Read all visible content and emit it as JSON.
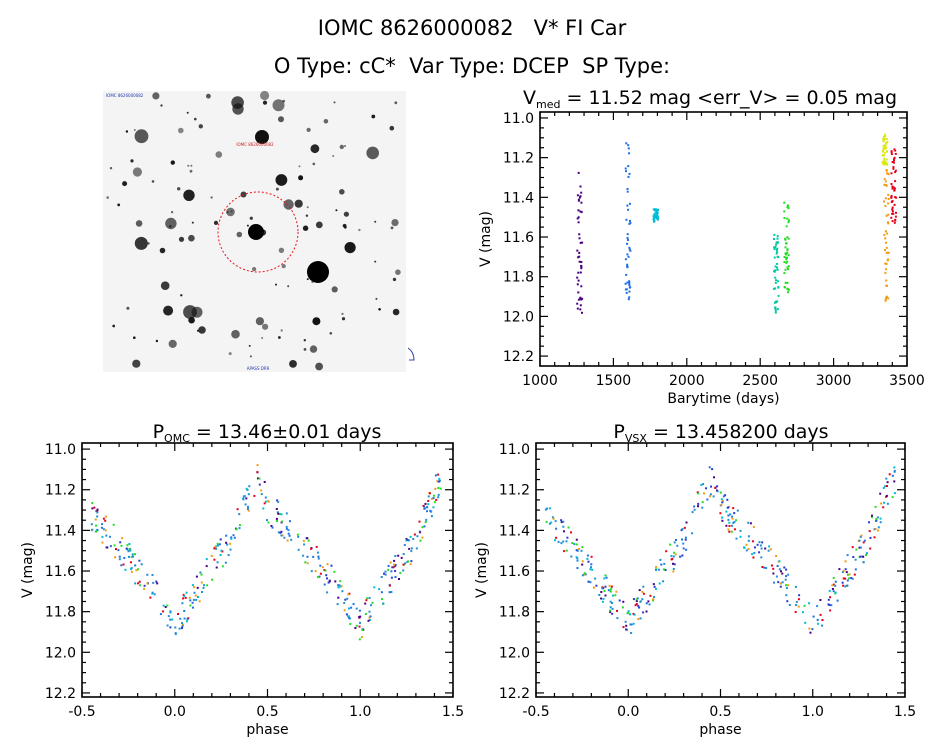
{
  "header": {
    "line1": "IOMC 8626000082   V* FI Car",
    "line2": "O Type: cC*  Var Type: DCEP  SP Type:"
  },
  "image_panel": {
    "corner_label_top_left": "IOMC 8626000082",
    "label_top_center": "IOMC 8626000082",
    "label_bottom_center": "APASS DR9",
    "circle_color": "#e8141c"
  },
  "chart_data": [
    {
      "id": "lightcurve",
      "type": "scatter",
      "title": "V_med = 11.52 mag <err_V> = 0.05 mag",
      "title_parts": {
        "sym": "V",
        "sub": "med",
        "rest": " = 11.52 mag <err_V> = 0.05 mag"
      },
      "xlabel": "Barytime (days)",
      "ylabel": "V (mag)",
      "xlim": [
        1000,
        3500
      ],
      "ylim": [
        12.25,
        10.97
      ],
      "xticks": [
        1000,
        1500,
        2000,
        2500,
        3000,
        3500
      ],
      "yticks": [
        11.0,
        11.2,
        11.4,
        11.6,
        11.8,
        12.0,
        12.2
      ],
      "ytick_labels": [
        "11.0",
        "11.2",
        "11.4",
        "11.6",
        "11.8",
        "12.0",
        "12.2"
      ],
      "series": [
        {
          "color": "#4b0082",
          "x": 1270,
          "ymin": 11.27,
          "ymax": 11.99
        },
        {
          "color": "#1e6fe6",
          "x": 1600,
          "ymin": 11.06,
          "ymax": 11.93
        },
        {
          "color": "#00bcd4",
          "x": 1790,
          "ymin": 11.46,
          "ymax": 11.53
        },
        {
          "color": "#00c8a0",
          "x": 2610,
          "ymin": 11.58,
          "ymax": 11.99
        },
        {
          "color": "#22dd22",
          "x": 2680,
          "ymin": 11.42,
          "ymax": 11.88
        },
        {
          "color": "#f39c12",
          "x": 3360,
          "ymin": 11.26,
          "ymax": 11.97
        },
        {
          "color": "#d9ea12",
          "x": 3350,
          "ymin": 11.08,
          "ymax": 11.24
        },
        {
          "color": "#e6001a",
          "x": 3410,
          "ymin": 11.15,
          "ymax": 11.55
        }
      ]
    },
    {
      "id": "phase_omc",
      "type": "scatter",
      "title": "P_OMC = 13.46±0.01 days",
      "title_parts": {
        "sym": "P",
        "sub": "OMC",
        "rest": " = 13.46±0.01 days"
      },
      "xlabel": "phase",
      "ylabel": "V (mag)",
      "xlim": [
        -0.5,
        1.5
      ],
      "ylim": [
        12.22,
        10.97
      ],
      "xticks": [
        -0.5,
        0.0,
        0.5,
        1.0,
        1.5
      ],
      "xtick_labels": [
        "-0.5",
        "0.0",
        "0.5",
        "1.0",
        "1.5"
      ],
      "yticks": [
        11.0,
        11.2,
        11.4,
        11.6,
        11.8,
        12.0,
        12.2
      ],
      "ytick_labels": [
        "11.0",
        "11.2",
        "11.4",
        "11.6",
        "11.8",
        "12.0",
        "12.2"
      ],
      "curve": {
        "phase": [
          0.0,
          0.1,
          0.2,
          0.3,
          0.4,
          0.45,
          0.5,
          0.6,
          0.7,
          0.8,
          0.9,
          1.0
        ],
        "v": [
          11.86,
          11.72,
          11.58,
          11.45,
          11.22,
          11.15,
          11.28,
          11.38,
          11.48,
          11.6,
          11.72,
          11.86
        ]
      }
    },
    {
      "id": "phase_vsx",
      "type": "scatter",
      "title": "P_VSX = 13.458200 days",
      "title_parts": {
        "sym": "P",
        "sub": "VSX",
        "rest": " = 13.458200 days"
      },
      "xlabel": "phase",
      "ylabel": "V (mag)",
      "xlim": [
        -0.5,
        1.5
      ],
      "ylim": [
        12.22,
        10.97
      ],
      "xticks": [
        -0.5,
        0.0,
        0.5,
        1.0,
        1.5
      ],
      "xtick_labels": [
        "-0.5",
        "0.0",
        "0.5",
        "1.0",
        "1.5"
      ],
      "yticks": [
        11.0,
        11.2,
        11.4,
        11.6,
        11.8,
        12.0,
        12.2
      ],
      "ytick_labels": [
        "11.0",
        "11.2",
        "11.4",
        "11.6",
        "11.8",
        "12.0",
        "12.2"
      ],
      "curve": {
        "phase": [
          0.0,
          0.1,
          0.2,
          0.3,
          0.4,
          0.45,
          0.5,
          0.6,
          0.7,
          0.8,
          0.9,
          1.0
        ],
        "v": [
          11.86,
          11.72,
          11.58,
          11.45,
          11.22,
          11.15,
          11.28,
          11.38,
          11.48,
          11.6,
          11.72,
          11.86
        ]
      }
    }
  ]
}
